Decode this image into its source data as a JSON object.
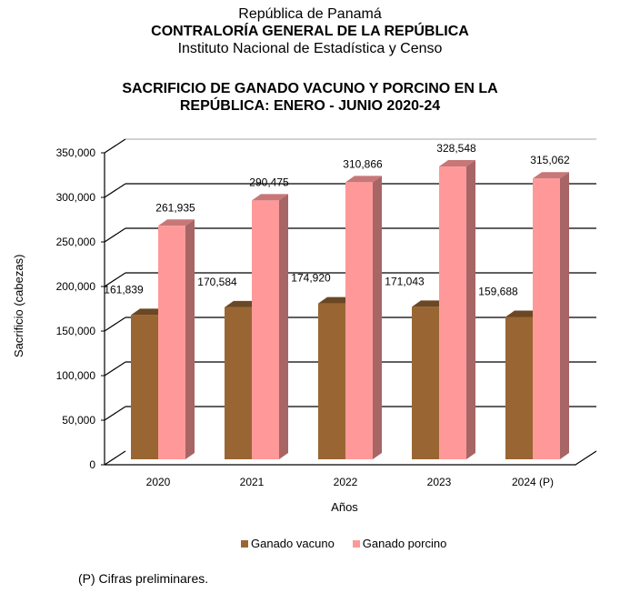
{
  "header": {
    "line1": "República de Panamá",
    "line2": "CONTRALORÍA GENERAL DE LA REPÚBLICA",
    "line3": "Instituto Nacional de Estadística y Censo"
  },
  "chart_data": {
    "type": "bar",
    "style": "3d-clustered-column",
    "title": "SACRIFICIO DE GANADO VACUNO Y PORCINO EN LA REPÚBLICA: ENERO - JUNIO 2020-24",
    "title_lines": [
      "SACRIFICIO DE GANADO VACUNO Y PORCINO EN LA",
      "REPÚBLICA: ENERO - JUNIO 2020-24"
    ],
    "xlabel": "Años",
    "ylabel": "Sacrificio (cabezas)",
    "categories": [
      "2020",
      "2021",
      "2022",
      "2023",
      "2024 (P)"
    ],
    "series": [
      {
        "name": "Ganado vacuno",
        "color": "#996633",
        "values": [
          161839,
          170584,
          174920,
          171043,
          159688
        ],
        "labels": [
          "161,839",
          "170,584",
          "174,920",
          "171,043",
          "159,688"
        ]
      },
      {
        "name": "Ganado porcino",
        "color": "#FF9999",
        "values": [
          261935,
          290475,
          310866,
          328548,
          315062
        ],
        "labels": [
          "261,935",
          "290,475",
          "310,866",
          "328,548",
          "315,062"
        ]
      }
    ],
    "ylim": [
      0,
      350000
    ],
    "yticks": [
      0,
      50000,
      100000,
      150000,
      200000,
      250000,
      300000,
      350000
    ],
    "ytick_labels": [
      "0",
      "50,000",
      "100,000",
      "150,000",
      "200,000",
      "250,000",
      "300,000",
      "350,000"
    ],
    "grid": true,
    "legend_position": "bottom"
  },
  "footnote": "(P) Cifras preliminares."
}
